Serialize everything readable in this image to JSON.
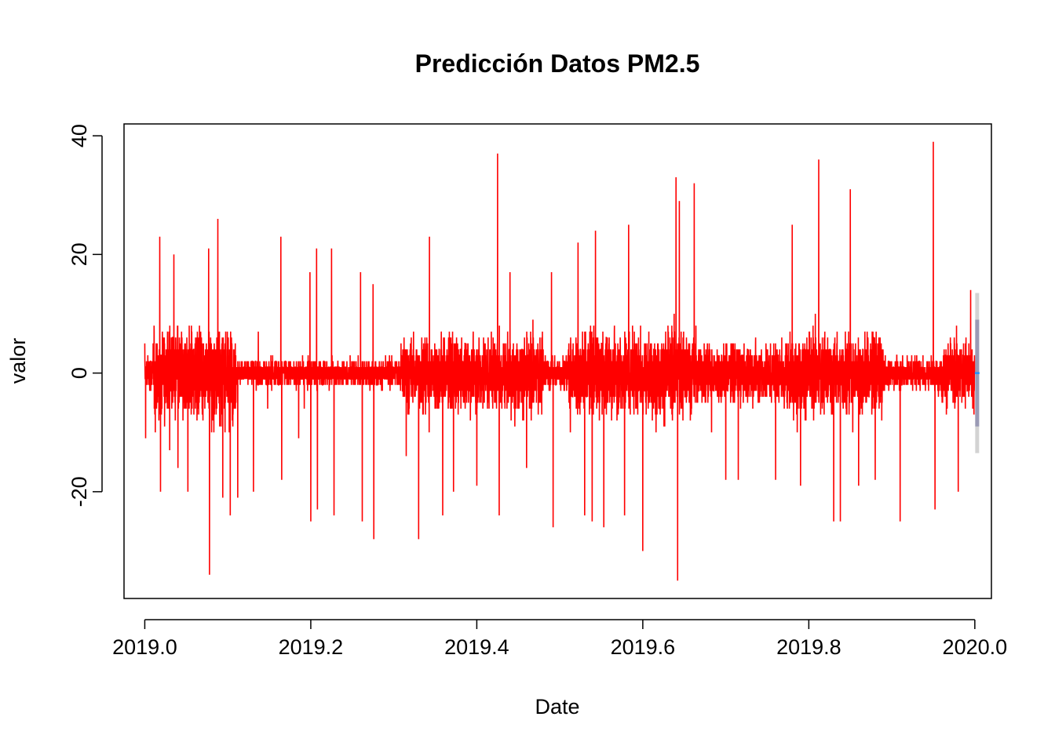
{
  "chart_data": {
    "type": "line",
    "title": "Predicción Datos PM2.5",
    "xlabel": "Date",
    "ylabel": "valor",
    "xlim": [
      2018.975,
      2020.02
    ],
    "ylim": [
      -38,
      42
    ],
    "x_ticks": [
      2019.0,
      2019.2,
      2019.4,
      2019.6,
      2019.8,
      2020.0
    ],
    "x_tick_labels": [
      "2019.0",
      "2019.2",
      "2019.4",
      "2019.6",
      "2019.8",
      "2020.0"
    ],
    "y_ticks": [
      -20,
      0,
      20,
      40
    ],
    "y_tick_labels": [
      "-20",
      "0",
      "20",
      "40"
    ],
    "grid": false,
    "box": true,
    "series": [
      {
        "x_start": 2019.0,
        "x_end": 2020.0,
        "n_points": 8760,
        "color": "#ff0000",
        "description_points": [
          [
            2019.0,
            5
          ],
          [
            2019.001,
            -11
          ],
          [
            2019.018,
            23
          ],
          [
            2019.019,
            -20
          ],
          [
            2019.03,
            -13
          ],
          [
            2019.035,
            20
          ],
          [
            2019.04,
            -16
          ],
          [
            2019.052,
            -20
          ],
          [
            2019.077,
            21
          ],
          [
            2019.078,
            -34
          ],
          [
            2019.088,
            26
          ],
          [
            2019.094,
            -21
          ],
          [
            2019.103,
            -24
          ],
          [
            2019.112,
            -21
          ],
          [
            2019.131,
            -20
          ],
          [
            2019.164,
            23
          ],
          [
            2019.165,
            -18
          ],
          [
            2019.199,
            17
          ],
          [
            2019.2,
            -25
          ],
          [
            2019.207,
            21
          ],
          [
            2019.208,
            -23
          ],
          [
            2019.225,
            21
          ],
          [
            2019.228,
            -24
          ],
          [
            2019.26,
            17
          ],
          [
            2019.262,
            -25
          ],
          [
            2019.275,
            15
          ],
          [
            2019.276,
            -28
          ],
          [
            2019.315,
            -14
          ],
          [
            2019.33,
            -28
          ],
          [
            2019.343,
            23
          ],
          [
            2019.359,
            -24
          ],
          [
            2019.372,
            -20
          ],
          [
            2019.4,
            -19
          ],
          [
            2019.425,
            37
          ],
          [
            2019.427,
            -24
          ],
          [
            2019.44,
            17
          ],
          [
            2019.46,
            -16
          ],
          [
            2019.49,
            17
          ],
          [
            2019.492,
            -26
          ],
          [
            2019.522,
            22
          ],
          [
            2019.53,
            -24
          ],
          [
            2019.539,
            -25
          ],
          [
            2019.543,
            24
          ],
          [
            2019.553,
            -26
          ],
          [
            2019.578,
            -24
          ],
          [
            2019.583,
            25
          ],
          [
            2019.6,
            -30
          ],
          [
            2019.64,
            33
          ],
          [
            2019.642,
            -35
          ],
          [
            2019.644,
            29
          ],
          [
            2019.662,
            32
          ],
          [
            2019.7,
            -18
          ],
          [
            2019.715,
            -18
          ],
          [
            2019.76,
            -18
          ],
          [
            2019.78,
            25
          ],
          [
            2019.79,
            -19
          ],
          [
            2019.812,
            36
          ],
          [
            2019.83,
            -25
          ],
          [
            2019.838,
            -25
          ],
          [
            2019.85,
            31
          ],
          [
            2019.86,
            -19
          ],
          [
            2019.88,
            -18
          ],
          [
            2019.91,
            -25
          ],
          [
            2019.95,
            39
          ],
          [
            2019.952,
            -23
          ],
          [
            2019.98,
            -20
          ],
          [
            2019.995,
            14
          ],
          [
            2019.999,
            -7
          ]
        ]
      }
    ],
    "forecast": {
      "x": 2020.0,
      "mean": 0,
      "interval_80": [
        -9,
        9
      ],
      "interval_95": [
        -13.5,
        13.5
      ],
      "mean_color": "#1e90ff",
      "interval_80_color": "#9a9ab5",
      "interval_95_color": "#d3d3d3"
    }
  }
}
